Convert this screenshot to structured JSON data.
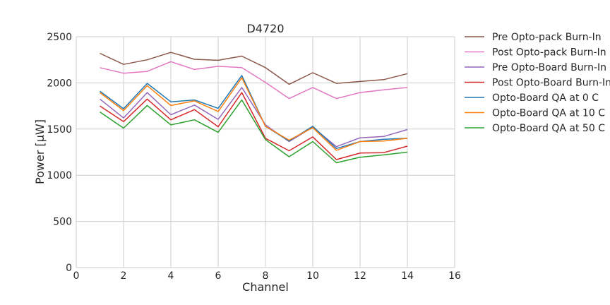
{
  "chart_data": {
    "type": "line",
    "title": "D4720",
    "xlabel": "Channel",
    "ylabel": "Power [μW]",
    "xlim": [
      0,
      16
    ],
    "ylim": [
      0,
      2500
    ],
    "xticks": [
      0,
      2,
      4,
      6,
      8,
      10,
      12,
      14,
      16
    ],
    "yticks": [
      0,
      500,
      1000,
      1500,
      2000,
      2500
    ],
    "grid": true,
    "legend_position": "outside-right",
    "x": [
      1,
      2,
      3,
      4,
      5,
      6,
      7,
      8,
      9,
      10,
      11,
      12,
      13,
      14
    ],
    "series": [
      {
        "name": "Pre Opto-pack Burn-In",
        "color": "#8c564b",
        "values": [
          2320,
          2200,
          2250,
          2330,
          2255,
          2245,
          2290,
          2165,
          1985,
          2110,
          1995,
          2015,
          2035,
          2100
        ]
      },
      {
        "name": "Post Opto-pack Burn-In",
        "color": "#e377c2",
        "values": [
          2165,
          2105,
          2125,
          2230,
          2145,
          2180,
          2165,
          2005,
          1830,
          1950,
          1830,
          1895,
          1925,
          1950
        ]
      },
      {
        "name": "Pre Opto-Board Burn-In",
        "color": "#9467bd",
        "values": [
          1825,
          1620,
          1895,
          1655,
          1760,
          1605,
          1950,
          1545,
          1365,
          1520,
          1310,
          1405,
          1420,
          1495
        ]
      },
      {
        "name": "Post Opto-Board Burn-In",
        "color": "#d62728",
        "values": [
          1750,
          1580,
          1825,
          1600,
          1710,
          1525,
          1895,
          1400,
          1265,
          1415,
          1170,
          1240,
          1245,
          1315
        ]
      },
      {
        "name": "Opto-Board QA at 0 C",
        "color": "#1f77b4",
        "values": [
          1910,
          1720,
          1995,
          1795,
          1815,
          1725,
          2080,
          1530,
          1370,
          1530,
          1290,
          1365,
          1390,
          1400
        ]
      },
      {
        "name": "Opto-Board QA at 10 C",
        "color": "#ff7f0e",
        "values": [
          1895,
          1700,
          1970,
          1755,
          1805,
          1690,
          2055,
          1530,
          1380,
          1515,
          1270,
          1365,
          1370,
          1400
        ]
      },
      {
        "name": "Opto-Board QA at 50 C",
        "color": "#2ca02c",
        "values": [
          1685,
          1510,
          1755,
          1545,
          1600,
          1465,
          1815,
          1385,
          1200,
          1365,
          1135,
          1195,
          1220,
          1250
        ]
      }
    ]
  }
}
